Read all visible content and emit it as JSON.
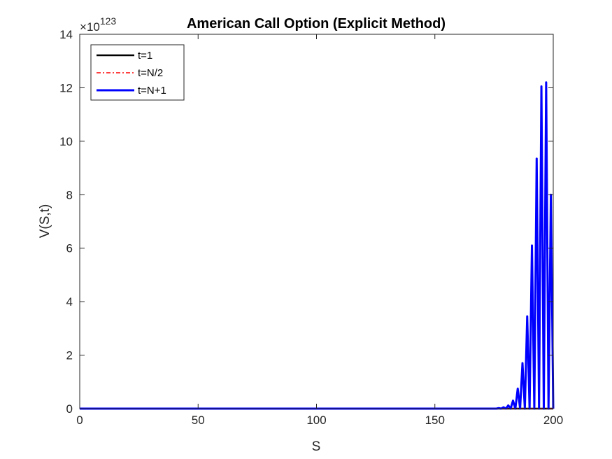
{
  "chart_data": {
    "type": "line",
    "title": "American Call Option (Explicit Method)",
    "xlabel": "S",
    "ylabel": "V(S,t)",
    "xlim": [
      0,
      200
    ],
    "ylim": [
      0,
      14
    ],
    "xticks": [
      "0",
      "50",
      "100",
      "150",
      "200"
    ],
    "yticks": [
      "0",
      "2",
      "4",
      "6",
      "8",
      "10",
      "12",
      "14"
    ],
    "y_exponent": {
      "base": "10",
      "power": "123",
      "prefix": "×"
    },
    "grid": false,
    "legend_position": "top-left",
    "series": [
      {
        "name": "t=1",
        "color": "#000000",
        "style": "solid",
        "x": [
          0,
          200
        ],
        "y": [
          0,
          0
        ]
      },
      {
        "name": "t=N/2",
        "color": "#ff0000",
        "style": "dash-dot",
        "x": [
          0,
          200
        ],
        "y": [
          0,
          0
        ]
      },
      {
        "name": "t=N+1",
        "color": "#0000ff",
        "style": "solid",
        "x": [
          0,
          176,
          177,
          178,
          179,
          180,
          181,
          182,
          183,
          184,
          185,
          186,
          187,
          188,
          189,
          190,
          191,
          192,
          193,
          194,
          195,
          196,
          197,
          198,
          199,
          200
        ],
        "y": [
          0,
          0,
          0.02,
          0,
          0.05,
          0,
          0.12,
          0,
          0.3,
          0,
          0.75,
          0,
          1.7,
          0,
          3.45,
          0,
          6.1,
          0,
          9.35,
          0,
          12.05,
          0,
          12.2,
          0,
          8.0,
          0
        ]
      }
    ]
  }
}
